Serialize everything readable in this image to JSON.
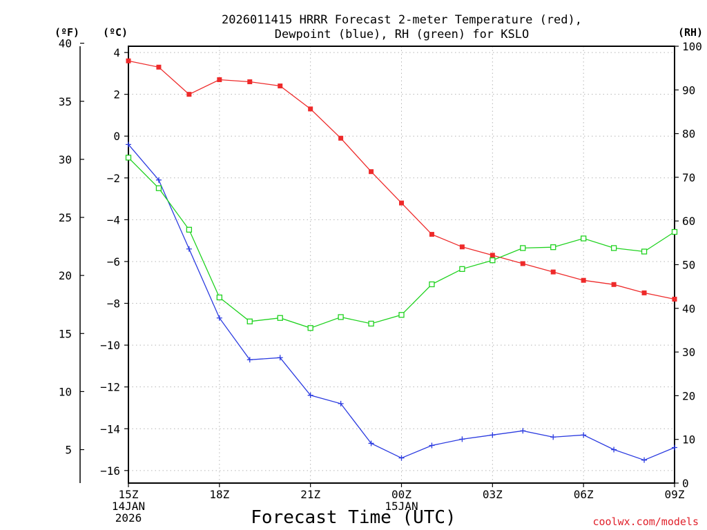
{
  "chart_data": {
    "type": "line",
    "title_line1": "2026011415 HRRR Forecast 2-meter Temperature (red),",
    "title_line2": "Dewpoint (blue), RH (green) for KSLO",
    "xlabel": "Forecast Time (UTC)",
    "watermark": "coolwx.com/models",
    "unit_left_f": "(ºF)",
    "unit_left_c": "(ºC)",
    "unit_right": "(RH)",
    "x_hours": [
      0,
      1,
      2,
      3,
      4,
      5,
      6,
      7,
      8,
      9,
      10,
      11,
      12,
      13,
      14,
      15,
      16,
      17,
      18
    ],
    "x_ticks": [
      {
        "hour": 0,
        "lines": [
          "15Z",
          "14JAN",
          "2026"
        ]
      },
      {
        "hour": 3,
        "lines": [
          "18Z"
        ]
      },
      {
        "hour": 6,
        "lines": [
          "21Z"
        ]
      },
      {
        "hour": 9,
        "lines": [
          "00Z",
          "15JAN"
        ]
      },
      {
        "hour": 12,
        "lines": [
          "03Z"
        ]
      },
      {
        "hour": 15,
        "lines": [
          "06Z"
        ]
      },
      {
        "hour": 18,
        "lines": [
          "09Z"
        ]
      }
    ],
    "xlim": [
      0,
      18
    ],
    "celsius_axis": {
      "lim": [
        -16.6,
        4.3
      ],
      "ticks": [
        4,
        2,
        0,
        -2,
        -4,
        -6,
        -8,
        -10,
        -12,
        -14,
        -16
      ]
    },
    "fahrenheit_axis": {
      "ticks": [
        40,
        35,
        30,
        25,
        20,
        15,
        10,
        5
      ]
    },
    "rh_axis": {
      "lim": [
        0,
        100
      ],
      "ticks": [
        100,
        90,
        80,
        70,
        60,
        50,
        40,
        30,
        20,
        10,
        0
      ]
    },
    "grid": true,
    "series": [
      {
        "name": "Temperature",
        "unit": "C",
        "color": "#ee2a2a",
        "marker": "filled-square",
        "values": [
          3.6,
          3.3,
          2.0,
          2.7,
          2.6,
          2.4,
          1.3,
          -0.1,
          -1.7,
          -3.2,
          -4.7,
          -5.3,
          -5.7,
          -6.1,
          -6.5,
          -6.9,
          -7.1,
          -7.5,
          -7.8
        ]
      },
      {
        "name": "Dewpoint",
        "unit": "C",
        "color": "#2a3ae0",
        "marker": "plus",
        "values": [
          -0.4,
          -2.1,
          -5.4,
          -8.7,
          -10.7,
          -10.6,
          -12.4,
          -12.8,
          -14.7,
          -15.4,
          -14.8,
          -14.5,
          -14.3,
          -14.1,
          -14.4,
          -14.3,
          -15.0,
          -15.5,
          -14.9
        ]
      },
      {
        "name": "RH",
        "unit": "%",
        "color": "#1ed21e",
        "marker": "open-square",
        "values": [
          74.5,
          67.5,
          58.0,
          42.5,
          37.0,
          37.8,
          35.5,
          38.0,
          36.5,
          38.5,
          45.5,
          49.0,
          51.0,
          53.8,
          54.0,
          56.0,
          53.8,
          53.0,
          57.5
        ]
      }
    ]
  }
}
